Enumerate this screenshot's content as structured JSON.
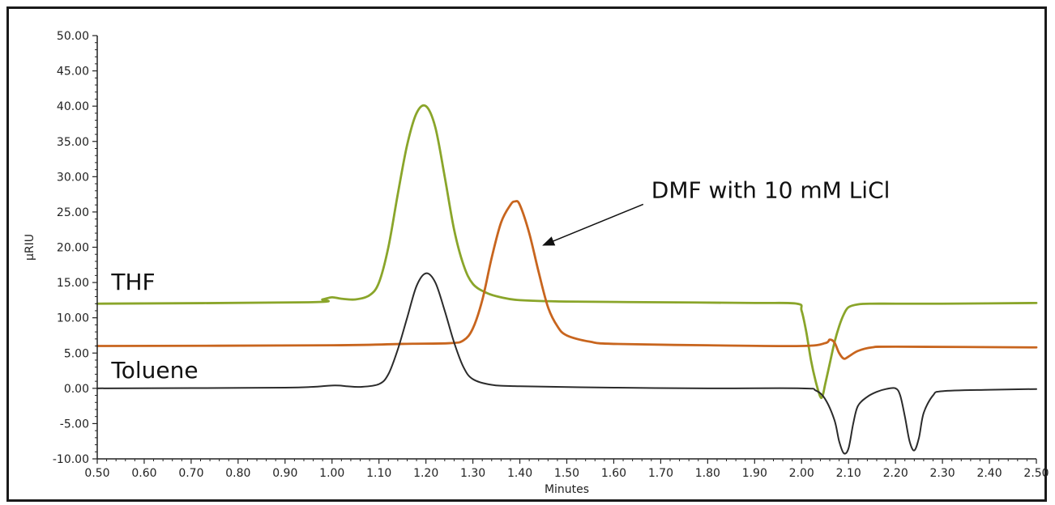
{
  "chart_data": {
    "type": "line",
    "title": "",
    "xlabel": "Minutes",
    "ylabel": "µRIU",
    "xlim": [
      0.5,
      2.5
    ],
    "ylim": [
      -10,
      50
    ],
    "x_ticks": [
      "0.50",
      "0.60",
      "0.70",
      "0.80",
      "0.90",
      "1.00",
      "1.10",
      "1.20",
      "1.30",
      "1.40",
      "1.50",
      "1.60",
      "1.70",
      "1.80",
      "1.90",
      "2.00",
      "2.10",
      "2.20",
      "2.30",
      "2.40",
      "2.50"
    ],
    "y_ticks": [
      "-10.00",
      "-5.00",
      "0.00",
      "5.00",
      "10.00",
      "15.00",
      "20.00",
      "25.00",
      "30.00",
      "35.00",
      "40.00",
      "45.00",
      "50.00"
    ],
    "grid": false,
    "legend": "none",
    "series": [
      {
        "name": "THF",
        "color": "#8aa52a",
        "x": [
          0.5,
          0.95,
          0.98,
          1.0,
          1.02,
          1.05,
          1.08,
          1.1,
          1.12,
          1.14,
          1.16,
          1.18,
          1.2,
          1.22,
          1.24,
          1.26,
          1.28,
          1.3,
          1.33,
          1.36,
          1.4,
          1.5,
          1.7,
          1.9,
          1.99,
          2.0,
          2.01,
          2.02,
          2.03,
          2.04,
          2.045,
          2.05,
          2.06,
          2.07,
          2.08,
          2.09,
          2.1,
          2.12,
          2.15,
          2.2,
          2.3,
          2.5
        ],
        "y": [
          12.0,
          12.2,
          12.6,
          12.9,
          12.7,
          12.6,
          13.2,
          15.0,
          20.0,
          27.5,
          34.5,
          39.0,
          40.0,
          37.0,
          30.0,
          22.5,
          17.5,
          14.8,
          13.5,
          12.9,
          12.5,
          12.3,
          12.2,
          12.1,
          12.0,
          11.0,
          8.0,
          4.0,
          1.0,
          -1.2,
          -1.0,
          0.5,
          3.5,
          6.5,
          8.8,
          10.5,
          11.5,
          11.9,
          12.0,
          12.0,
          12.0,
          12.1
        ]
      },
      {
        "name": "DMF with 10 mM LiCl",
        "color": "#c8651e",
        "x": [
          0.5,
          1.0,
          1.15,
          1.25,
          1.28,
          1.3,
          1.32,
          1.34,
          1.36,
          1.38,
          1.39,
          1.4,
          1.42,
          1.44,
          1.46,
          1.48,
          1.5,
          1.55,
          1.6,
          1.8,
          2.0,
          2.05,
          2.06,
          2.07,
          2.08,
          2.09,
          2.1,
          2.12,
          2.15,
          2.2,
          2.5
        ],
        "y": [
          6.0,
          6.1,
          6.3,
          6.4,
          6.8,
          8.5,
          12.5,
          18.5,
          23.5,
          26.0,
          26.5,
          26.0,
          22.0,
          16.5,
          11.5,
          8.8,
          7.5,
          6.6,
          6.3,
          6.1,
          6.0,
          6.4,
          6.9,
          6.5,
          5.0,
          4.2,
          4.5,
          5.3,
          5.8,
          5.9,
          5.8
        ]
      },
      {
        "name": "Toluene",
        "color": "#2b2b2b",
        "x": [
          0.5,
          0.9,
          1.0,
          1.03,
          1.06,
          1.1,
          1.12,
          1.14,
          1.16,
          1.18,
          1.2,
          1.22,
          1.24,
          1.26,
          1.28,
          1.3,
          1.34,
          1.4,
          1.6,
          1.8,
          2.0,
          2.03,
          2.05,
          2.07,
          2.08,
          2.09,
          2.1,
          2.11,
          2.12,
          2.14,
          2.16,
          2.18,
          2.2,
          2.21,
          2.22,
          2.23,
          2.24,
          2.25,
          2.26,
          2.28,
          2.3,
          2.4,
          2.5
        ],
        "y": [
          0.0,
          0.1,
          0.4,
          0.3,
          0.2,
          0.6,
          2.0,
          5.5,
          10.0,
          14.5,
          16.3,
          15.0,
          11.0,
          6.5,
          3.0,
          1.3,
          0.5,
          0.3,
          0.1,
          0.0,
          0.0,
          -0.3,
          -1.5,
          -4.5,
          -7.5,
          -9.2,
          -8.5,
          -5.0,
          -2.5,
          -1.2,
          -0.5,
          -0.1,
          0.0,
          -1.0,
          -4.0,
          -7.5,
          -8.8,
          -7.0,
          -3.5,
          -1.0,
          -0.4,
          -0.2,
          -0.1
        ]
      }
    ],
    "annotations": [
      {
        "text": "THF",
        "x": 0.53,
        "y": 14.0,
        "color": "#111111"
      },
      {
        "text": "Toluene",
        "x": 0.53,
        "y": 1.5,
        "color": "#111111"
      },
      {
        "text": "DMF with 10 mM LiCl",
        "x": 1.68,
        "y": 27.0,
        "arrow_to": [
          1.45,
          20.3
        ],
        "color": "#111111"
      }
    ]
  }
}
